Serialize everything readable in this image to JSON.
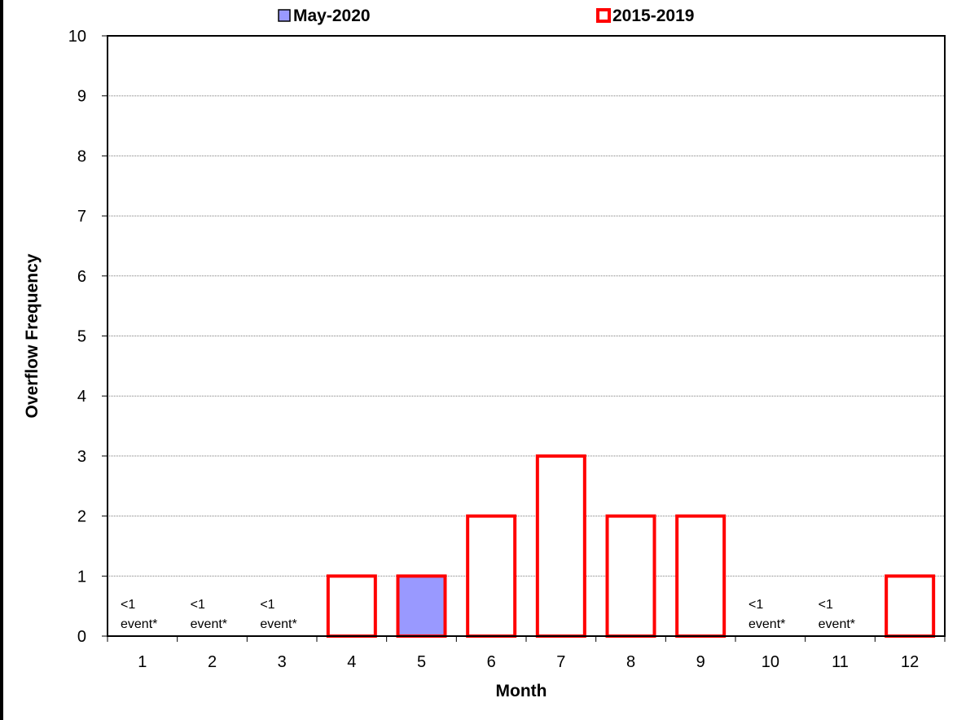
{
  "chart_data": {
    "type": "bar",
    "categories": [
      "1",
      "2",
      "3",
      "4",
      "5",
      "6",
      "7",
      "8",
      "9",
      "10",
      "11",
      "12"
    ],
    "series": [
      {
        "name": "May-2020",
        "values": [
          null,
          null,
          null,
          null,
          1,
          null,
          null,
          null,
          null,
          null,
          null,
          null
        ],
        "fill": "#9999ff",
        "stroke": "#ff0000"
      },
      {
        "name": "2015-2019",
        "values": [
          null,
          null,
          null,
          1,
          1,
          2,
          3,
          2,
          2,
          null,
          null,
          1
        ],
        "fill": "none",
        "stroke": "#ff0000"
      }
    ],
    "annotations": [
      {
        "category": "1",
        "lines": [
          "<1",
          "event*"
        ]
      },
      {
        "category": "2",
        "lines": [
          "<1",
          "event*"
        ]
      },
      {
        "category": "3",
        "lines": [
          "<1",
          "event*"
        ]
      },
      {
        "category": "10",
        "lines": [
          "<1",
          "event*"
        ]
      },
      {
        "category": "11",
        "lines": [
          "<1",
          "event*"
        ]
      }
    ],
    "xlabel": "Month",
    "ylabel": "Overflow Frequency",
    "ylim": [
      0,
      10
    ],
    "yticks": [
      0,
      1,
      2,
      3,
      4,
      5,
      6,
      7,
      8,
      9,
      10
    ],
    "grid": true,
    "legend_position": "top"
  }
}
